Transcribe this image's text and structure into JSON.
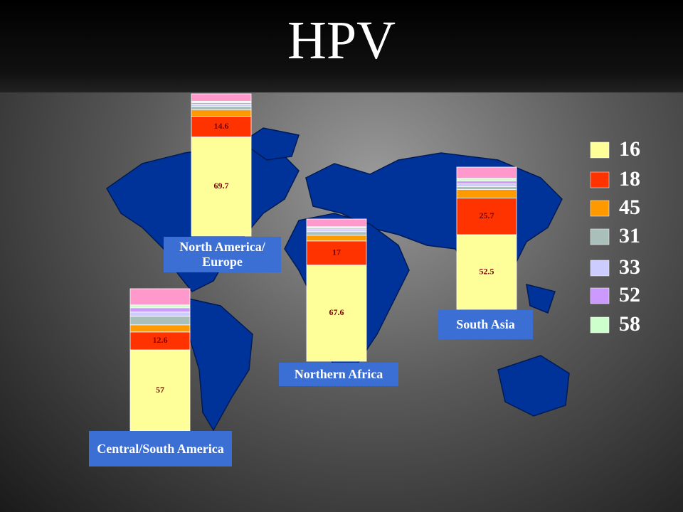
{
  "chart_data": {
    "type": "bar",
    "stacked": true,
    "title": "HPV",
    "categories": [
      "North America/ Europe",
      "Northern Africa",
      "South Asia",
      "Central/South America"
    ],
    "ylim": [
      0,
      100
    ],
    "series": [
      {
        "name": "16",
        "color": "#ffff99",
        "data_labels": true,
        "values": [
          69.7,
          67.6,
          52.5,
          57
        ]
      },
      {
        "name": "18",
        "color": "#ff3300",
        "data_labels": true,
        "values": [
          14.6,
          17,
          25.7,
          12.6
        ]
      },
      {
        "name": "45",
        "color": "#ff9900",
        "data_labels": false,
        "values": [
          4.5,
          4,
          6,
          5
        ]
      },
      {
        "name": "31",
        "color": "#a8bfba",
        "data_labels": false,
        "values": [
          2.5,
          2.5,
          2,
          6
        ]
      },
      {
        "name": "33",
        "color": "#ccccff",
        "data_labels": false,
        "values": [
          1.5,
          1.5,
          2,
          3
        ]
      },
      {
        "name": "52",
        "color": "#cc99ff",
        "data_labels": false,
        "values": [
          1,
          1,
          2,
          3
        ]
      },
      {
        "name": "58",
        "color": "#ccffcc",
        "data_labels": false,
        "values": [
          1,
          1,
          2,
          2
        ]
      },
      {
        "name": null,
        "color": "#ff99cc",
        "data_labels": false,
        "values": [
          5.2,
          5.4,
          7.8,
          11.4
        ]
      }
    ]
  }
}
